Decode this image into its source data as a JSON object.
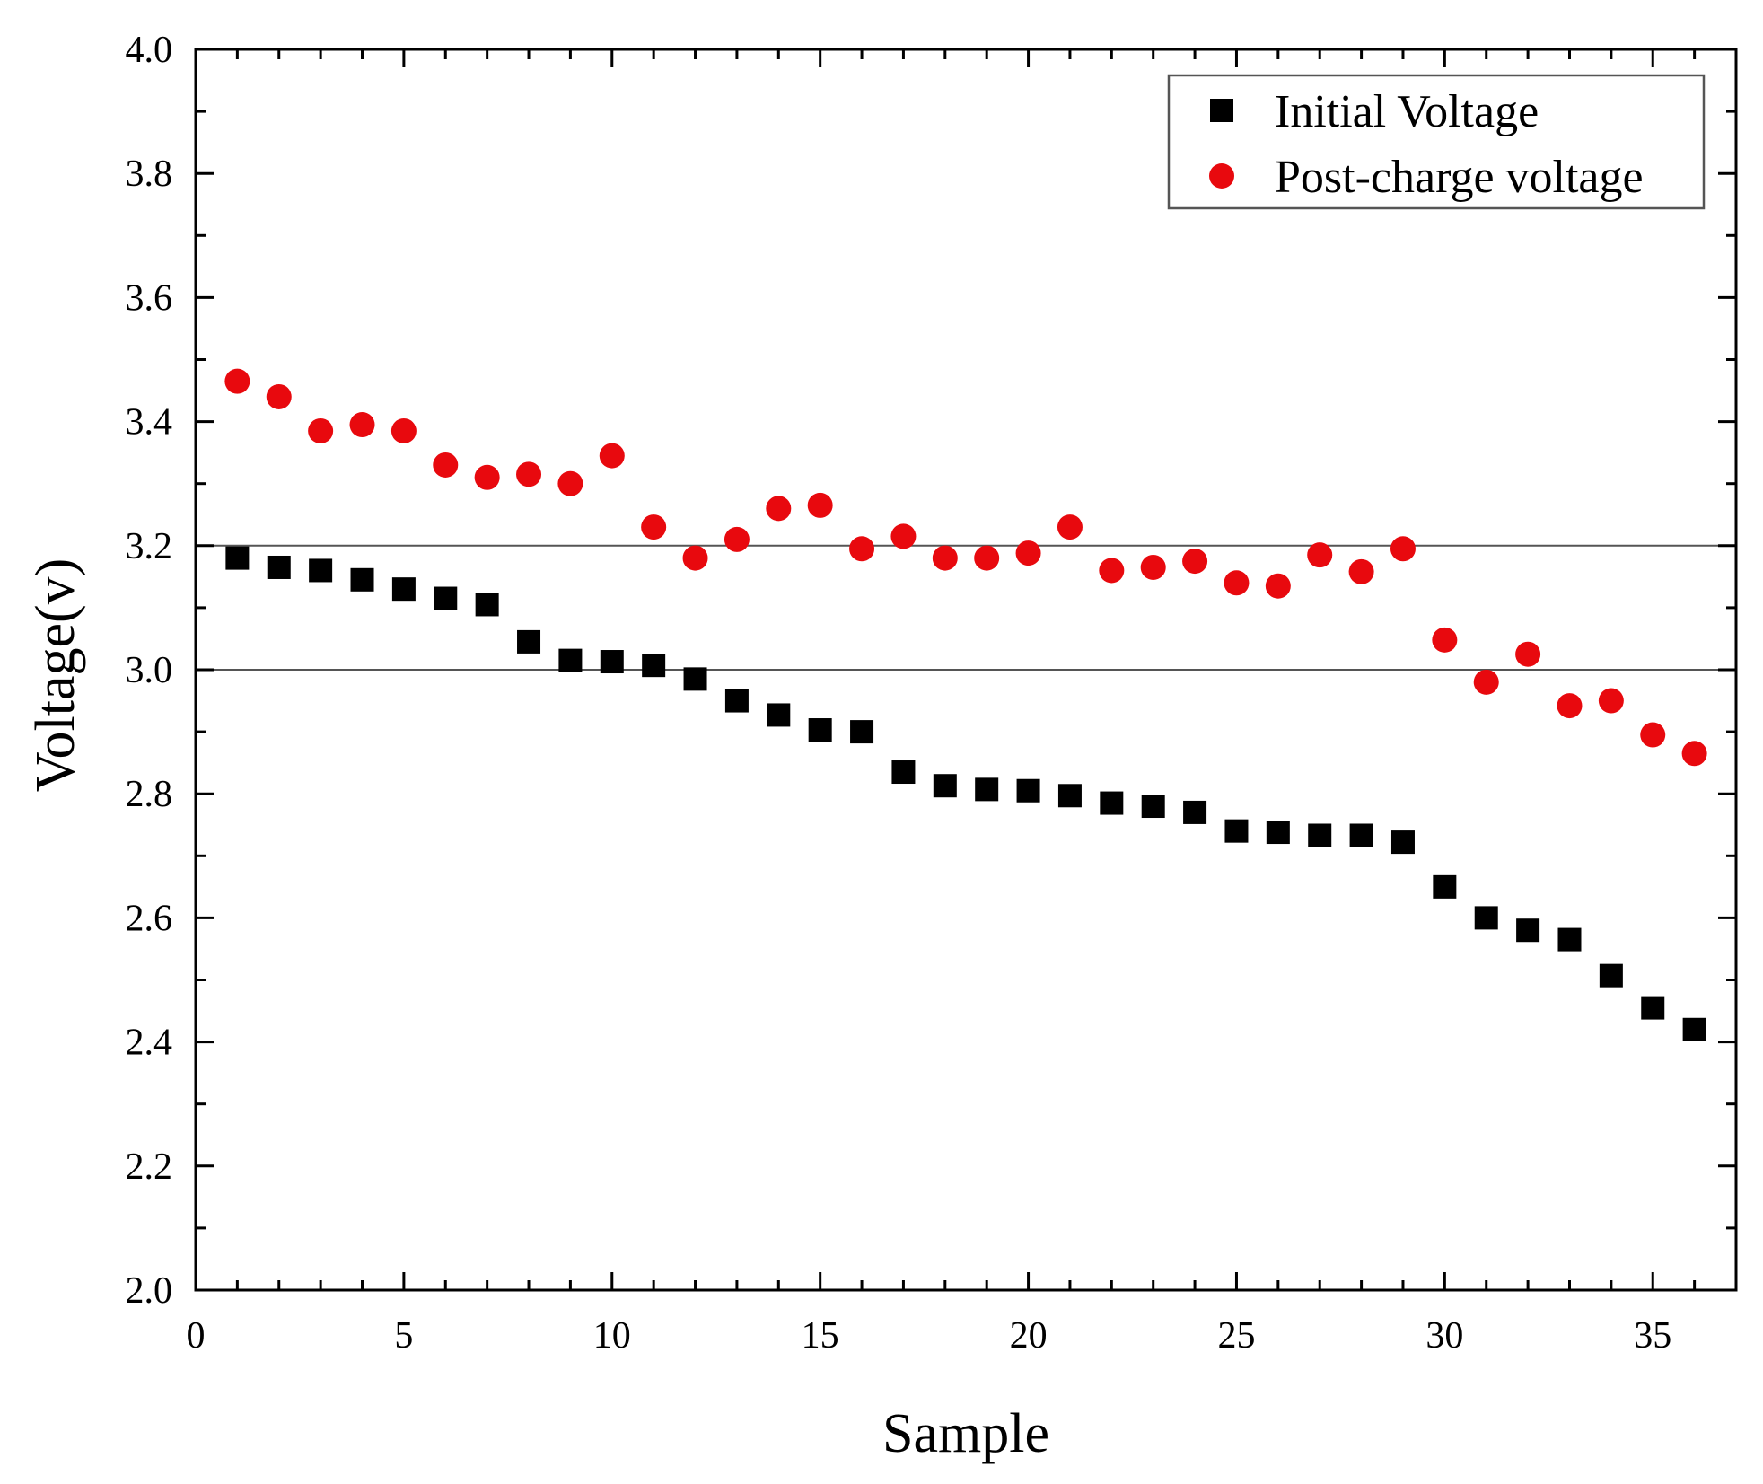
{
  "chart_data": {
    "type": "scatter",
    "title": "",
    "xlabel": "Sample",
    "ylabel": "Voltage(v)",
    "xlim": [
      0,
      37
    ],
    "ylim": [
      2.0,
      4.0
    ],
    "xticks": [
      0,
      5,
      10,
      15,
      20,
      25,
      30,
      35
    ],
    "yticks": [
      2.0,
      2.2,
      2.4,
      2.6,
      2.8,
      3.0,
      3.2,
      3.4,
      3.6,
      3.8,
      4.0
    ],
    "reference_lines": [
      3.0,
      3.2
    ],
    "legend_position": "top-right",
    "x": [
      1,
      2,
      3,
      4,
      5,
      6,
      7,
      8,
      9,
      10,
      11,
      12,
      13,
      14,
      15,
      16,
      17,
      18,
      19,
      20,
      21,
      22,
      23,
      24,
      25,
      26,
      27,
      28,
      29,
      30,
      31,
      32,
      33,
      34,
      35,
      36
    ],
    "series": [
      {
        "name": "Initial Voltage",
        "marker": "square",
        "color": "#000000",
        "values": [
          3.18,
          3.165,
          3.16,
          3.145,
          3.13,
          3.115,
          3.105,
          3.045,
          3.015,
          3.013,
          3.007,
          2.985,
          2.95,
          2.927,
          2.903,
          2.9,
          2.835,
          2.813,
          2.807,
          2.805,
          2.797,
          2.785,
          2.78,
          2.77,
          2.74,
          2.738,
          2.733,
          2.733,
          2.722,
          2.65,
          2.6,
          2.58,
          2.565,
          2.507,
          2.455,
          2.42
        ]
      },
      {
        "name": "Post-charge voltage",
        "marker": "circle",
        "color": "#e8090e",
        "values": [
          3.465,
          3.44,
          3.385,
          3.395,
          3.385,
          3.33,
          3.31,
          3.315,
          3.3,
          3.345,
          3.23,
          3.18,
          3.21,
          3.26,
          3.265,
          3.195,
          3.215,
          3.18,
          3.18,
          3.188,
          3.23,
          3.16,
          3.165,
          3.175,
          3.14,
          3.135,
          3.185,
          3.158,
          3.195,
          3.048,
          2.98,
          3.025,
          2.942,
          2.95,
          2.895,
          2.865
        ]
      }
    ]
  }
}
